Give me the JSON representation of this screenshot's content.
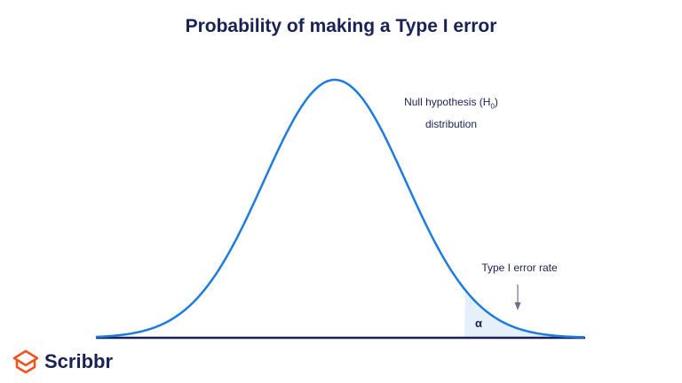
{
  "title": "Probability of making a Type I error",
  "null_label": {
    "line1": "Null hypothesis (H",
    "sub": "0",
    "line1_end": ")",
    "line2": "distribution"
  },
  "error_label": "Type I error rate",
  "alpha_label": "α",
  "logo": "Scribbr",
  "colors": {
    "curve": "#1e7be0",
    "shade": "#e6f0fb",
    "axis": "#1a2155",
    "arrow": "#6b6f8f",
    "logo_icon": "#f4511e"
  }
}
